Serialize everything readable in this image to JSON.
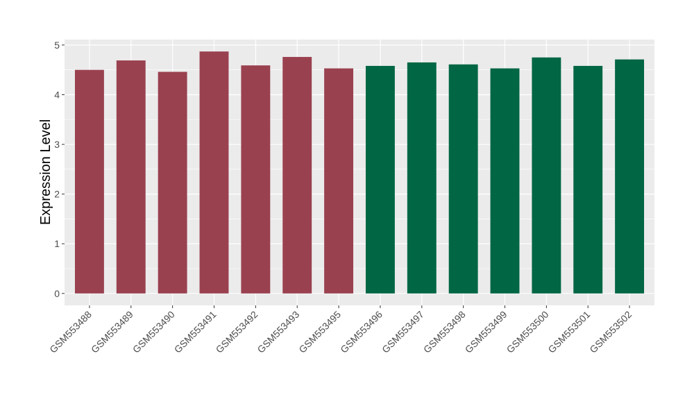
{
  "chart_data": {
    "type": "bar",
    "title": "",
    "xlabel": "",
    "ylabel": "Expression Level",
    "categories": [
      "GSM553488",
      "GSM553489",
      "GSM553490",
      "GSM553491",
      "GSM553492",
      "GSM553493",
      "GSM553495",
      "GSM553496",
      "GSM553497",
      "GSM553498",
      "GSM553499",
      "GSM553500",
      "GSM553501",
      "GSM553502"
    ],
    "values": [
      4.5,
      4.69,
      4.46,
      4.87,
      4.59,
      4.76,
      4.53,
      4.58,
      4.65,
      4.61,
      4.53,
      4.75,
      4.58,
      4.71
    ],
    "bar_groups": [
      0,
      0,
      0,
      0,
      0,
      0,
      0,
      1,
      1,
      1,
      1,
      1,
      1,
      1
    ],
    "group_colors": [
      "#9A4150",
      "#006644"
    ],
    "ylim": [
      -0.24,
      5.11
    ],
    "yticks": [
      0,
      1,
      2,
      3,
      4,
      5
    ],
    "grid": true,
    "legend": "none",
    "panel_background": "#EBEBEB"
  }
}
